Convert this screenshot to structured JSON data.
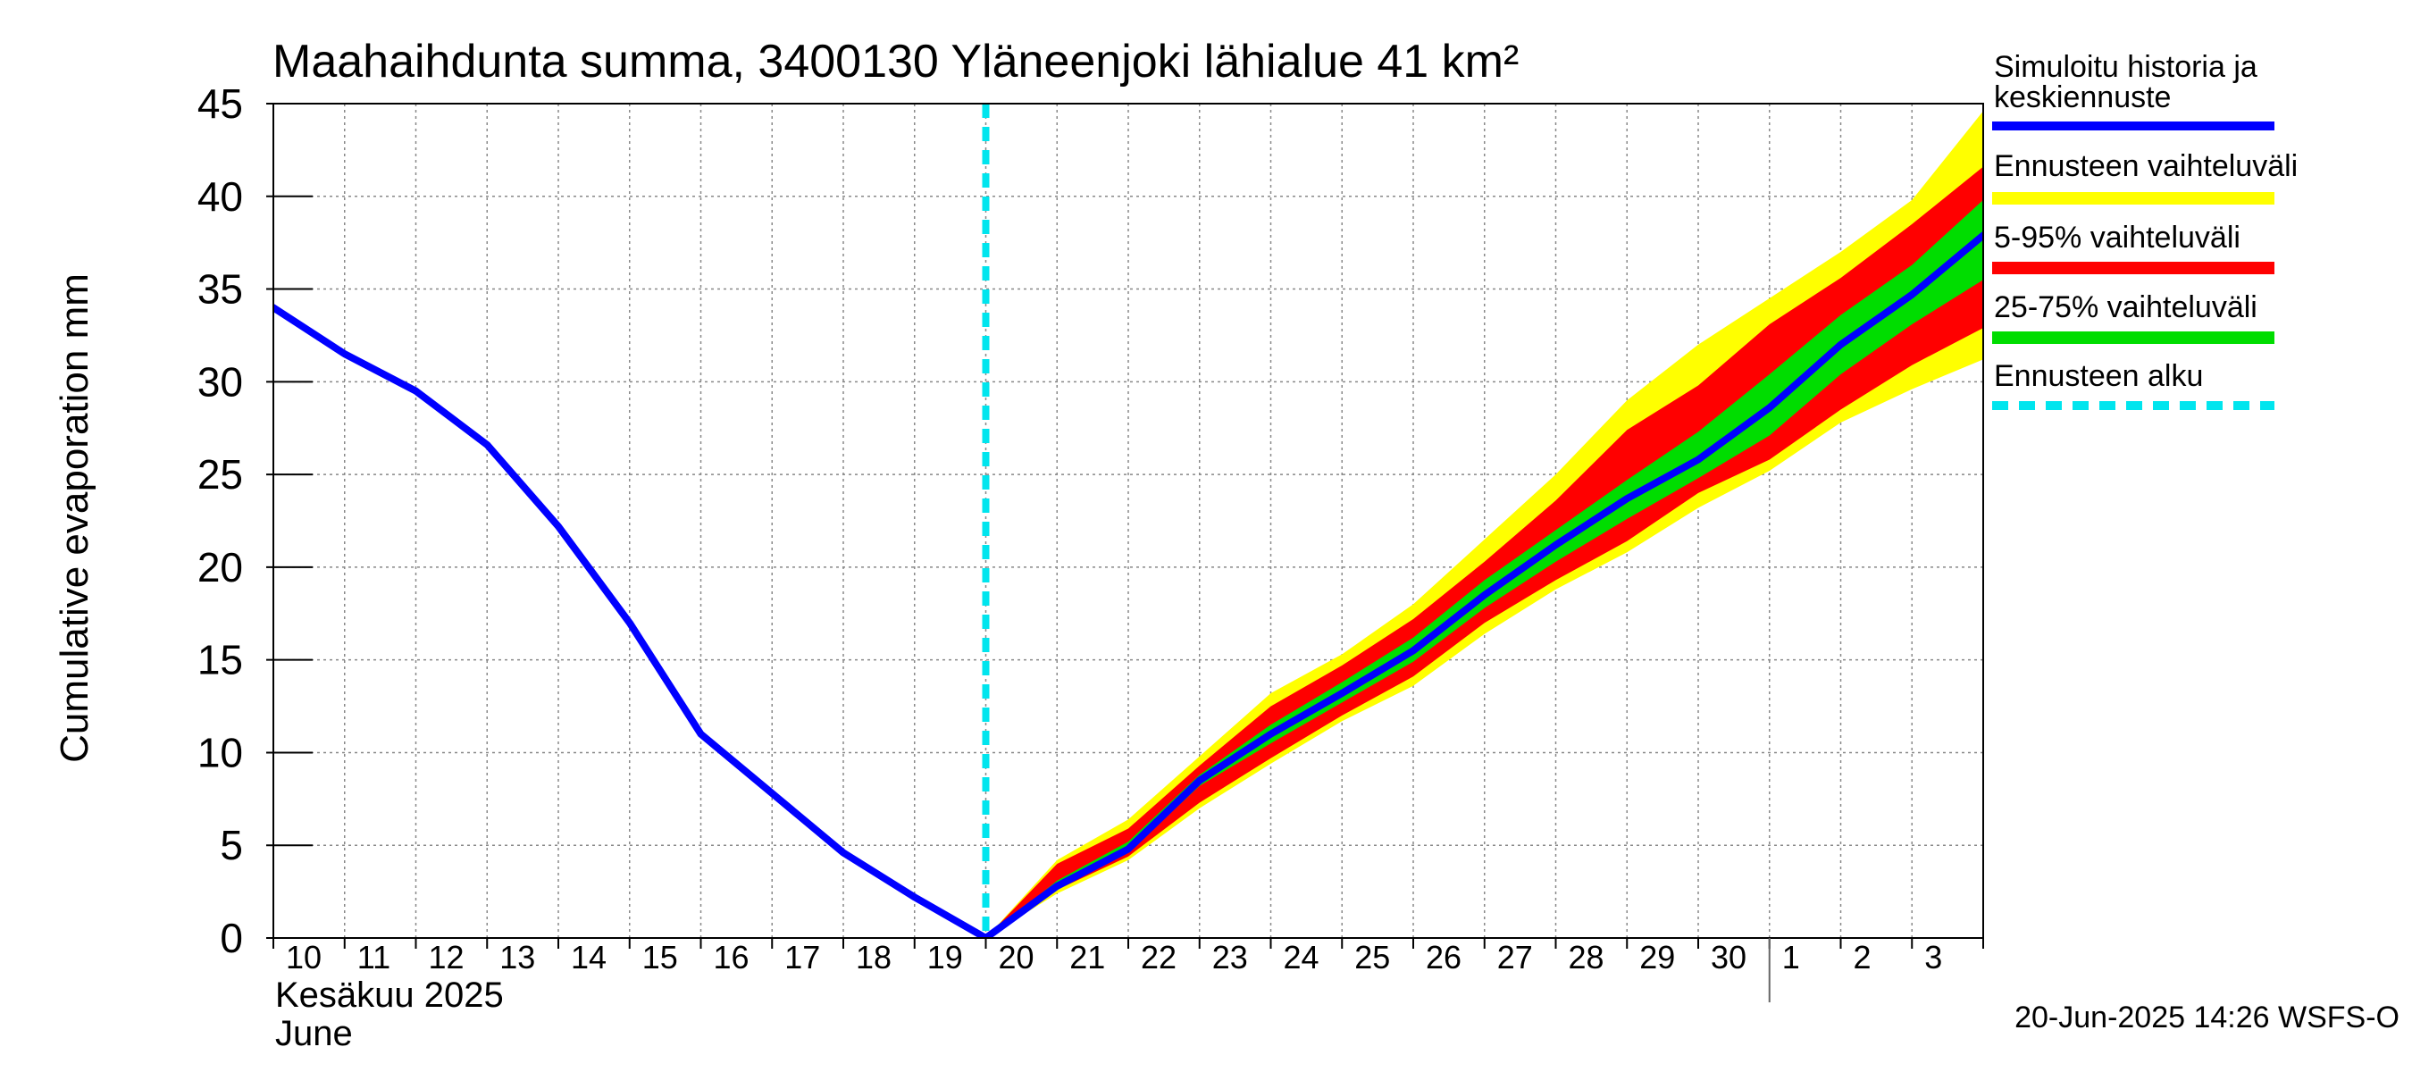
{
  "chart_data": {
    "type": "area",
    "title": "Maahaihdunta summa, 3400130 Yläneenjoki lähialue 41 km²",
    "ylabel": "Cumulative evaporation   mm",
    "xlabel": "",
    "month_label_fi": "Kesäkuu   2025",
    "month_label_en": "June",
    "ylim": [
      0,
      45
    ],
    "yticks": [
      0,
      5,
      10,
      15,
      20,
      25,
      30,
      35,
      40,
      45
    ],
    "x_range": [
      "2025-06-10",
      "2025-07-04"
    ],
    "x_tick_labels": [
      "10",
      "11",
      "12",
      "13",
      "14",
      "15",
      "16",
      "17",
      "18",
      "19",
      "20",
      "21",
      "22",
      "23",
      "24",
      "25",
      "26",
      "27",
      "28",
      "29",
      "30",
      "1",
      "2",
      "3"
    ],
    "grid": true,
    "legend_position": "right",
    "forecast_start": "2025-06-20",
    "timestamp": "20-Jun-2025 14:26 WSFS-O",
    "series": [
      {
        "name": "Simuloitu historia ja keskiennuste",
        "color": "#0000ff",
        "x": [
          "2025-06-10",
          "2025-06-11",
          "2025-06-12",
          "2025-06-13",
          "2025-06-14",
          "2025-06-15",
          "2025-06-16",
          "2025-06-17",
          "2025-06-18",
          "2025-06-19",
          "2025-06-20",
          "2025-06-21",
          "2025-06-22",
          "2025-06-23",
          "2025-06-24",
          "2025-06-25",
          "2025-06-26",
          "2025-06-27",
          "2025-06-28",
          "2025-06-29",
          "2025-06-30",
          "2025-07-01",
          "2025-07-02",
          "2025-07-03",
          "2025-07-04"
        ],
        "values": [
          34.0,
          31.5,
          29.5,
          26.6,
          22.2,
          17.0,
          11.0,
          7.8,
          4.6,
          2.2,
          0.0,
          2.8,
          4.8,
          8.5,
          11.0,
          13.2,
          15.5,
          18.5,
          21.2,
          23.7,
          25.8,
          28.6,
          32.0,
          34.7,
          37.9
        ]
      },
      {
        "name": "Ennusteen vaihteluväli",
        "color": "#ffff00",
        "x": [
          "2025-06-20",
          "2025-06-21",
          "2025-06-22",
          "2025-06-23",
          "2025-06-24",
          "2025-06-25",
          "2025-06-26",
          "2025-06-27",
          "2025-06-28",
          "2025-06-29",
          "2025-06-30",
          "2025-07-01",
          "2025-07-02",
          "2025-07-03",
          "2025-07-04"
        ],
        "upper": [
          0.0,
          4.2,
          6.4,
          9.8,
          13.2,
          15.3,
          18.0,
          21.5,
          25.0,
          29.0,
          32.0,
          34.5,
          37.0,
          39.8,
          44.6
        ],
        "lower": [
          0.0,
          2.4,
          4.2,
          7.0,
          9.4,
          11.7,
          13.6,
          16.4,
          18.8,
          20.8,
          23.2,
          25.2,
          27.8,
          29.6,
          31.2
        ]
      },
      {
        "name": "5-95% vaihteluväli",
        "color": "#ff0000",
        "x": [
          "2025-06-20",
          "2025-06-21",
          "2025-06-22",
          "2025-06-23",
          "2025-06-24",
          "2025-06-25",
          "2025-06-26",
          "2025-06-27",
          "2025-06-28",
          "2025-06-29",
          "2025-06-30",
          "2025-07-01",
          "2025-07-02",
          "2025-07-03",
          "2025-07-04"
        ],
        "upper": [
          0.0,
          4.0,
          5.9,
          9.3,
          12.5,
          14.7,
          17.2,
          20.3,
          23.6,
          27.4,
          29.8,
          33.1,
          35.6,
          38.5,
          41.6
        ],
        "lower": [
          0.0,
          2.6,
          4.4,
          7.3,
          9.7,
          12.0,
          14.1,
          17.0,
          19.3,
          21.4,
          24.0,
          25.8,
          28.5,
          30.9,
          32.9
        ]
      },
      {
        "name": "25-75% vaihteluväli",
        "color": "#00dd00",
        "x": [
          "2025-06-20",
          "2025-06-21",
          "2025-06-22",
          "2025-06-23",
          "2025-06-24",
          "2025-06-25",
          "2025-06-26",
          "2025-06-27",
          "2025-06-28",
          "2025-06-29",
          "2025-06-30",
          "2025-07-01",
          "2025-07-02",
          "2025-07-03",
          "2025-07-04"
        ],
        "upper": [
          0.0,
          3.1,
          5.2,
          8.8,
          11.5,
          13.8,
          16.2,
          19.3,
          22.0,
          24.7,
          27.3,
          30.4,
          33.6,
          36.3,
          39.8
        ],
        "lower": [
          0.0,
          2.7,
          4.6,
          8.2,
          10.5,
          12.7,
          14.9,
          17.8,
          20.3,
          22.6,
          24.8,
          27.1,
          30.4,
          33.1,
          35.5
        ]
      },
      {
        "name": "Ennusteen alku",
        "color": "#00e5ee"
      }
    ]
  }
}
